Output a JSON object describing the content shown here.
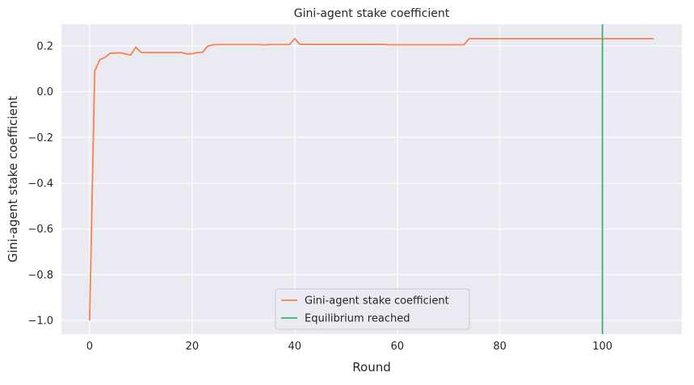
{
  "chart_data": {
    "type": "line",
    "title": "Gini-agent stake coefficient",
    "xlabel": "Round",
    "ylabel": "Gini-agent stake coefficient",
    "xlim": [
      -5.5,
      115.5
    ],
    "ylim": [
      -1.06,
      0.295
    ],
    "x_ticks": [
      0,
      20,
      40,
      60,
      80,
      100
    ],
    "y_ticks": [
      -1.0,
      -0.8,
      -0.6,
      -0.4,
      -0.2,
      0.0,
      0.2
    ],
    "x_tick_labels": [
      "0",
      "20",
      "40",
      "60",
      "80",
      "100"
    ],
    "y_tick_labels": [
      "−1.0",
      "−0.8",
      "−0.6",
      "−0.4",
      "−0.2",
      "0.0",
      "0.2"
    ],
    "grid": true,
    "legend_position": "lower-center",
    "series": [
      {
        "name": "Gini-agent stake coefficient",
        "color": "#F4834E",
        "points": [
          [
            0,
            -1.0
          ],
          [
            1,
            0.09
          ],
          [
            2,
            0.14
          ],
          [
            3,
            0.15
          ],
          [
            4,
            0.168
          ],
          [
            5,
            0.169
          ],
          [
            6,
            0.17
          ],
          [
            7,
            0.165
          ],
          [
            8,
            0.16
          ],
          [
            9,
            0.195
          ],
          [
            10,
            0.172
          ],
          [
            11,
            0.171
          ],
          [
            12,
            0.171
          ],
          [
            13,
            0.171
          ],
          [
            14,
            0.171
          ],
          [
            15,
            0.171
          ],
          [
            16,
            0.171
          ],
          [
            17,
            0.171
          ],
          [
            18,
            0.171
          ],
          [
            19,
            0.165
          ],
          [
            20,
            0.166
          ],
          [
            21,
            0.171
          ],
          [
            22,
            0.172
          ],
          [
            23,
            0.198
          ],
          [
            24,
            0.205
          ],
          [
            25,
            0.206
          ],
          [
            30,
            0.206
          ],
          [
            33,
            0.206
          ],
          [
            34,
            0.204
          ],
          [
            35,
            0.206
          ],
          [
            39,
            0.206
          ],
          [
            40,
            0.232
          ],
          [
            41,
            0.207
          ],
          [
            42,
            0.207
          ],
          [
            50,
            0.207
          ],
          [
            57,
            0.207
          ],
          [
            58,
            0.205
          ],
          [
            73,
            0.205
          ],
          [
            74,
            0.232
          ],
          [
            100,
            0.232
          ],
          [
            110,
            0.232
          ]
        ]
      },
      {
        "name": "Equilibrium reached",
        "color": "#3DB06B",
        "vline_x": 100
      }
    ]
  }
}
